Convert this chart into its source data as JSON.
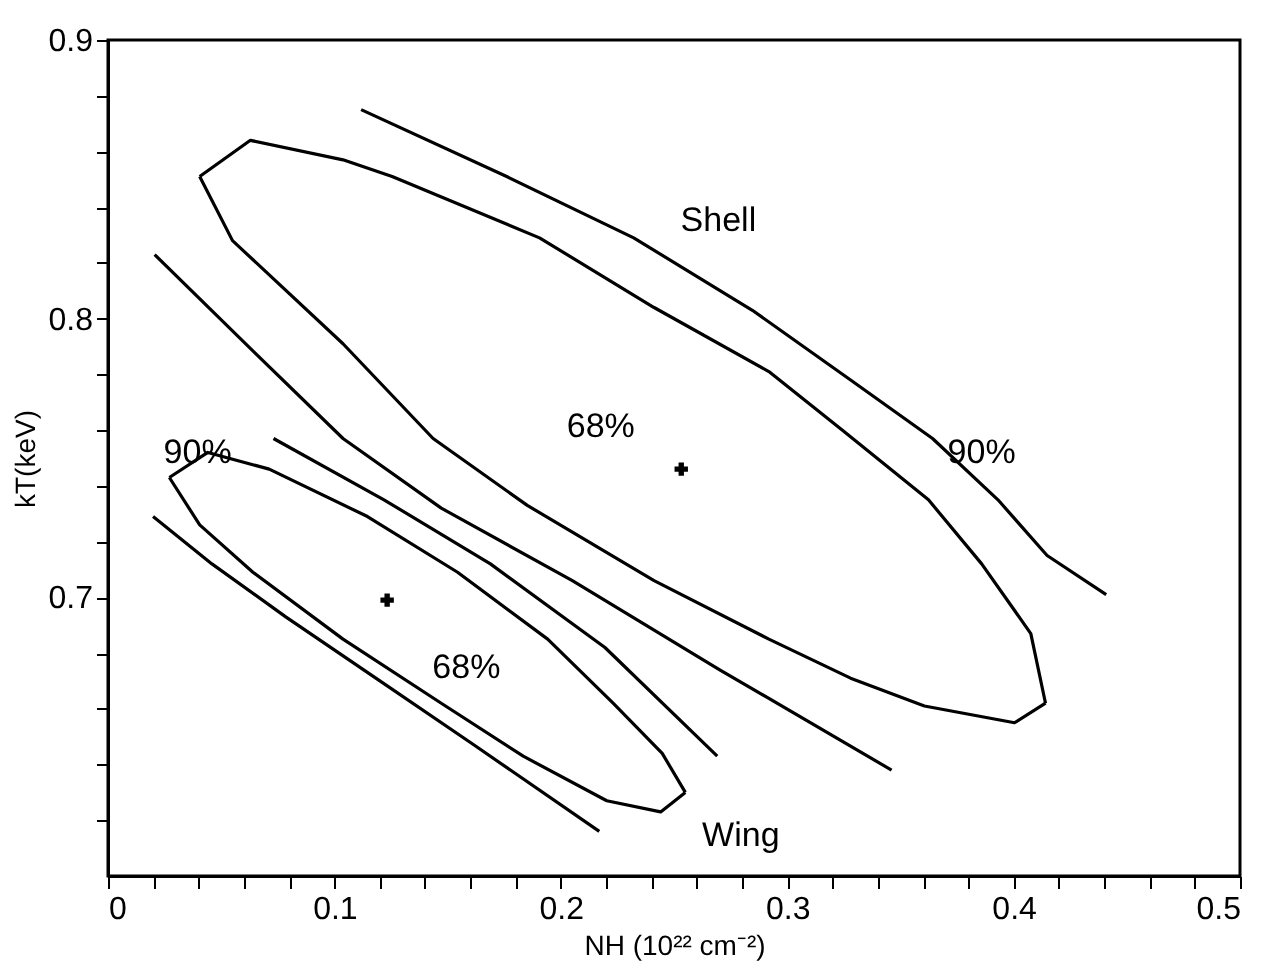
{
  "chart_data": {
    "type": "line",
    "xlabel": "NH (10²² cm⁻²)",
    "ylabel": "kT(keV)",
    "xlim": [
      0,
      0.5
    ],
    "ylim": [
      0.6,
      0.9
    ],
    "xticks": [
      0,
      {
        "value": 0.02,
        "label": null
      },
      {
        "value": 0.04,
        "label": null
      },
      {
        "value": 0.06,
        "label": null
      },
      {
        "value": 0.08,
        "label": null
      },
      0.1,
      {
        "value": 0.12,
        "label": null
      },
      {
        "value": 0.14,
        "label": null
      },
      {
        "value": 0.16,
        "label": null
      },
      {
        "value": 0.18,
        "label": null
      },
      0.2,
      {
        "value": 0.22,
        "label": null
      },
      {
        "value": 0.24,
        "label": null
      },
      {
        "value": 0.26,
        "label": null
      },
      {
        "value": 0.28,
        "label": null
      },
      0.3,
      {
        "value": 0.32,
        "label": null
      },
      {
        "value": 0.34,
        "label": null
      },
      {
        "value": 0.36,
        "label": null
      },
      {
        "value": 0.38,
        "label": null
      },
      0.4,
      {
        "value": 0.42,
        "label": null
      },
      {
        "value": 0.44,
        "label": null
      },
      {
        "value": 0.46,
        "label": null
      },
      {
        "value": 0.48,
        "label": null
      },
      0.5
    ],
    "yticks": [
      {
        "value": 0.62,
        "label": null
      },
      {
        "value": 0.64,
        "label": null
      },
      {
        "value": 0.66,
        "label": null
      },
      {
        "value": 0.68,
        "label": null
      },
      0.7,
      {
        "value": 0.72,
        "label": null
      },
      {
        "value": 0.74,
        "label": null
      },
      {
        "value": 0.76,
        "label": null
      },
      {
        "value": 0.78,
        "label": null
      },
      0.8,
      {
        "value": 0.82,
        "label": null
      },
      {
        "value": 0.84,
        "label": null
      },
      {
        "value": 0.86,
        "label": null
      },
      {
        "value": 0.88,
        "label": null
      },
      0.9
    ],
    "grid": false,
    "marker": "none",
    "line_style": "solid",
    "series": [
      {
        "color": "#000000",
        "x": [
          0.0405,
          0.0629,
          0.1038,
          0.1255,
          0.1906,
          0.2412,
          0.2919,
          0.3244,
          0.3624,
          0.3859,
          0.4076,
          0.4141
        ],
        "values": [
          0.851,
          0.864,
          0.857,
          0.851,
          0.829,
          0.804,
          0.781,
          0.76,
          0.735,
          0.712,
          0.687,
          0.662
        ]
      },
      {
        "color": "#000000",
        "x": [
          0.0405,
          0.055,
          0.1038,
          0.1436,
          0.1852,
          0.2412,
          0.2919,
          0.328,
          0.3606,
          0.4004,
          0.4141
        ],
        "values": [
          0.851,
          0.828,
          0.791,
          0.757,
          0.733,
          0.706,
          0.685,
          0.671,
          0.661,
          0.655,
          0.662
        ]
      },
      {
        "color": "#000000",
        "x": [
          0.1118,
          0.1761,
          0.2322,
          0.2846,
          0.328,
          0.3642,
          0.3931,
          0.4148,
          0.4409
        ],
        "values": [
          0.875,
          0.851,
          0.829,
          0.803,
          0.778,
          0.757,
          0.735,
          0.715,
          0.701
        ]
      },
      {
        "color": "#000000",
        "x": [
          0.0206,
          0.0658,
          0.1038,
          0.1472,
          0.2051,
          0.2702,
          0.3461
        ],
        "values": [
          0.823,
          0.787,
          0.757,
          0.732,
          0.706,
          0.674,
          0.638
        ]
      },
      {
        "color": "#000000",
        "x": [
          0.0271,
          0.0441,
          0.0712,
          0.1146,
          0.1544,
          0.1942,
          0.2231,
          0.2448,
          0.255
        ],
        "values": [
          0.743,
          0.752,
          0.746,
          0.729,
          0.709,
          0.685,
          0.662,
          0.644,
          0.63
        ]
      },
      {
        "color": "#000000",
        "x": [
          0.0271,
          0.0405,
          0.064,
          0.1038,
          0.1472,
          0.1834,
          0.2203,
          0.2441,
          0.255
        ],
        "values": [
          0.743,
          0.726,
          0.709,
          0.685,
          0.662,
          0.643,
          0.627,
          0.623,
          0.63
        ]
      },
      {
        "color": "#000000",
        "x": [
          0.0731,
          0.1219,
          0.1689,
          0.2195,
          0.2691
        ],
        "values": [
          0.757,
          0.735,
          0.712,
          0.682,
          0.643
        ]
      },
      {
        "color": "#000000",
        "x": [
          0.0199,
          0.0459,
          0.0785,
          0.1183,
          0.1617,
          0.217
        ],
        "values": [
          0.729,
          0.712,
          0.693,
          0.671,
          0.647,
          0.616
        ]
      },
      {
        "type": "scatter",
        "marker": "cross",
        "color": "#000000",
        "x": [
          0.2532,
          0.1233
        ],
        "values": [
          0.746,
          0.699
        ]
      }
    ],
    "annotations": [
      "Shell",
      "68%",
      "90%",
      "90%",
      "68%",
      "Wing"
    ]
  }
}
